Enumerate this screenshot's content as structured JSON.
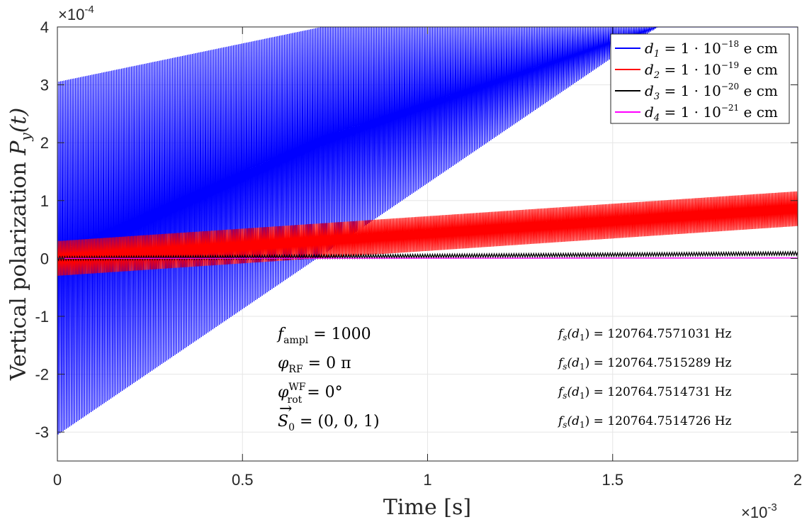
{
  "chart_data": {
    "type": "line",
    "xlabel": "Time [s]",
    "ylabel_text": "Vertical polarization ",
    "ylabel_math": "P",
    "ylabel_sub": "y",
    "ylabel_arg": "(t)",
    "x_exponent_label": "×10",
    "x_exponent_power": "-3",
    "y_exponent_label": "×10",
    "y_exponent_power": "-4",
    "xlim": [
      0,
      2
    ],
    "ylim": [
      -3.5,
      4
    ],
    "x_ticks": [
      0,
      0.5,
      1,
      1.5,
      2
    ],
    "x_tick_labels": [
      "0",
      "0.5",
      "1",
      "1.5",
      "2"
    ],
    "y_ticks": [
      -3,
      -2,
      -1,
      0,
      1,
      2,
      3,
      4
    ],
    "y_tick_labels": [
      "-3",
      "-2",
      "-1",
      "0",
      "1",
      "2",
      "3",
      "4"
    ],
    "grid": true,
    "legend_position": "top-right",
    "series": [
      {
        "name": "d1",
        "label_main": "d",
        "label_sub": "1",
        "label_eq": " = 1 · 10",
        "label_pow": "−18",
        "label_unit": " e cm",
        "color": "#0000ff",
        "envelope_upper_start": 3.05,
        "envelope_upper_slope": 1.33,
        "envelope_lower_start": -3.05,
        "envelope_lower_slope": 4.35,
        "clip_max": 4.0
      },
      {
        "name": "d2",
        "label_main": "d",
        "label_sub": "2",
        "label_eq": " = 1 · 10",
        "label_pow": "−19",
        "label_unit": " e cm",
        "color": "#ff0000",
        "envelope_upper_start": 0.3,
        "envelope_upper_slope": 0.43,
        "envelope_lower_start": -0.3,
        "envelope_lower_slope": 0.43
      },
      {
        "name": "d3",
        "label_main": "d",
        "label_sub": "3",
        "label_eq": " = 1 · 10",
        "label_pow": "−20",
        "label_unit": " e cm",
        "color": "#000000",
        "envelope_upper_start": 0.03,
        "envelope_upper_slope": 0.043,
        "envelope_lower_start": -0.03,
        "envelope_lower_slope": 0.043
      },
      {
        "name": "d4",
        "label_main": "d",
        "label_sub": "4",
        "label_eq": " = 1 · 10",
        "label_pow": "−21",
        "label_unit": " e cm",
        "color": "#ff00ff",
        "envelope_upper_start": 0.003,
        "envelope_upper_slope": 0.0043,
        "envelope_lower_start": -0.003,
        "envelope_lower_slope": 0.0043
      }
    ],
    "annotations_left": [
      {
        "main": "f",
        "sub": "ampl",
        "rest": " = 1000"
      },
      {
        "main": "φ",
        "sub": "RF",
        "rest": " = 0 π"
      },
      {
        "main": "φ",
        "sub": "rot",
        "sup": "WF",
        "rest": " = 0°"
      },
      {
        "main": "S",
        "sub": "0",
        "rest": " = (0, 0, 1)",
        "vector": true
      }
    ],
    "annotations_right": [
      {
        "prefix": "f",
        "sub": "s",
        "mid": "(d",
        "msub": "1",
        "rest": ") = 120764.7571031 Hz"
      },
      {
        "prefix": "f",
        "sub": "s",
        "mid": "(d",
        "msub": "1",
        "rest": ") = 120764.7515289 Hz"
      },
      {
        "prefix": "f",
        "sub": "s",
        "mid": "(d",
        "msub": "1",
        "rest": ") = 120764.7514731 Hz"
      },
      {
        "prefix": "f",
        "sub": "s",
        "mid": "(d",
        "msub": "1",
        "rest": ") = 120764.7514726 Hz"
      }
    ]
  }
}
